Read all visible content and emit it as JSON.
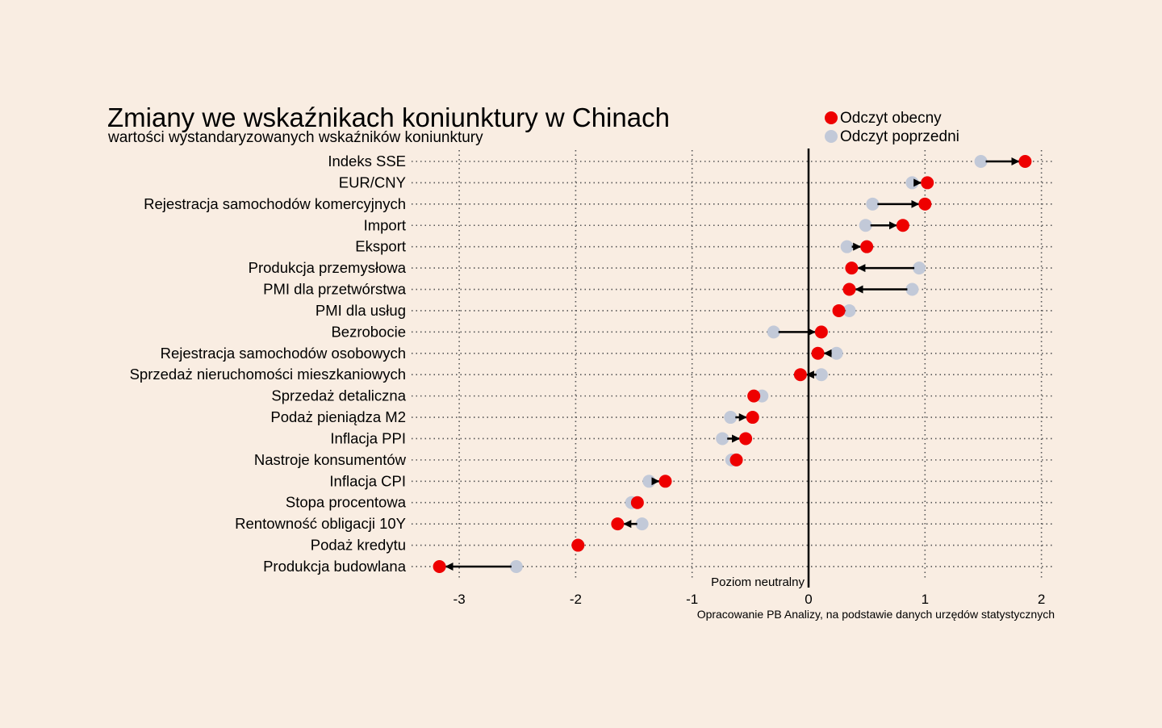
{
  "chart_data": {
    "type": "dumbbell",
    "title": "Zmiany we wskaźnikach koniunktury w Chinach",
    "subtitle": "wartości wystandaryzowanych wskaźników koniunktury",
    "legend": [
      {
        "name": "Odczyt obecny",
        "color": "#ee0000"
      },
      {
        "name": "Odczyt poprzedni",
        "color": "#c2c9d8"
      }
    ],
    "legend_placement": "top-right",
    "xlim": [
      -3.35,
      2.1
    ],
    "xticks": [
      -3,
      -2,
      -1,
      0,
      1,
      2
    ],
    "xtick_labels": [
      "-3",
      "-2",
      "-1",
      "0",
      "1",
      "2"
    ],
    "neutral_label": "Poziom neutralny",
    "source": "Opracowanie PB Analizy, na podstawie danych urzędów statystycznych",
    "grid": true,
    "categories": [
      "Indeks SSE",
      "EUR/CNY",
      "Rejestracja samochodów komercyjnych",
      "Import",
      "Eksport",
      "Produkcja przemysłowa",
      "PMI dla przetwórstwa",
      "PMI dla usług",
      "Bezrobocie",
      "Rejestracja samochodów osobowych",
      "Sprzedaż nieruchomości mieszkaniowych",
      "Sprzedaż detaliczna",
      "Podaż pieniądza M2",
      "Inflacja PPI",
      "Nastroje konsumentów",
      "Inflacja CPI",
      "Stopa procentowa",
      "Rentowność obligacji 10Y",
      "Podaż kredytu",
      "Produkcja budowlana"
    ],
    "series": [
      {
        "name": "Odczyt poprzedni",
        "values": [
          1.48,
          0.89,
          0.55,
          0.49,
          0.33,
          0.95,
          0.89,
          0.35,
          -0.3,
          0.24,
          0.11,
          -0.4,
          -0.67,
          -0.74,
          -0.66,
          -1.37,
          -1.52,
          -1.43,
          -1.98,
          -2.51
        ]
      },
      {
        "name": "Odczyt obecny",
        "values": [
          1.86,
          1.02,
          1.0,
          0.81,
          0.5,
          0.37,
          0.35,
          0.26,
          0.11,
          0.08,
          -0.07,
          -0.47,
          -0.48,
          -0.54,
          -0.62,
          -1.23,
          -1.47,
          -1.64,
          -1.98,
          -3.17
        ]
      }
    ],
    "colors": {
      "current": "#ee0000",
      "previous": "#c2c9d8",
      "background": "#f9ede2"
    }
  }
}
